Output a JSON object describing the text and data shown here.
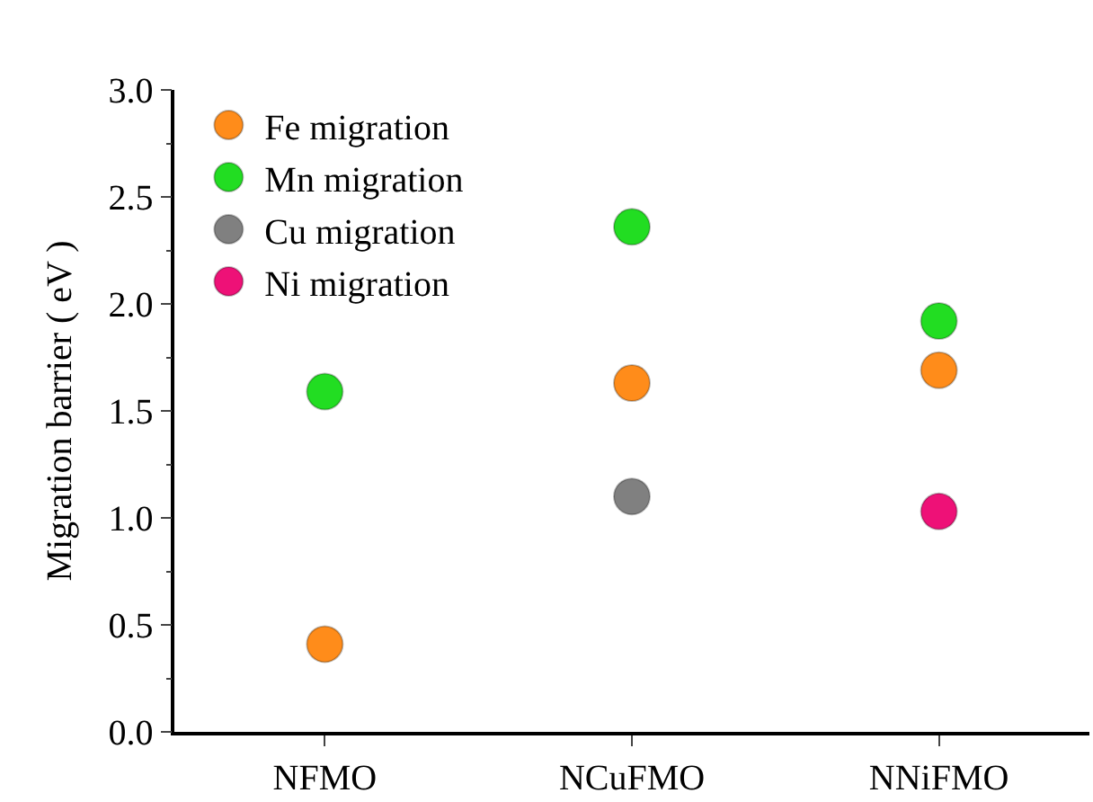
{
  "chart_data": {
    "type": "scatter",
    "ylabel": "Migration barrier ( eV )",
    "categories": [
      "NFMO",
      "NCuFMO",
      "NNiFMO"
    ],
    "series": [
      {
        "name": "Fe migration",
        "color": "#ff8c1a",
        "values": [
          0.41,
          1.63,
          1.69
        ]
      },
      {
        "name": "Mn migration",
        "color": "#22dd22",
        "values": [
          1.59,
          2.36,
          1.92
        ]
      },
      {
        "name": "Cu migration",
        "color": "#808080",
        "values": [
          null,
          1.1,
          null
        ]
      },
      {
        "name": "Ni migration",
        "color": "#ee1177",
        "values": [
          null,
          null,
          1.03
        ]
      }
    ],
    "ylim": [
      0,
      3.0
    ],
    "yticks": [
      {
        "value": 0,
        "label": "0.0"
      },
      {
        "value": 0.5,
        "label": "0.5"
      },
      {
        "value": 1,
        "label": "1.0"
      },
      {
        "value": 1.5,
        "label": "1.5"
      },
      {
        "value": 2,
        "label": "2.0"
      },
      {
        "value": 2.5,
        "label": "2.5"
      },
      {
        "value": 3,
        "label": "3.0"
      }
    ],
    "marker": "circle",
    "legend": "top left"
  }
}
